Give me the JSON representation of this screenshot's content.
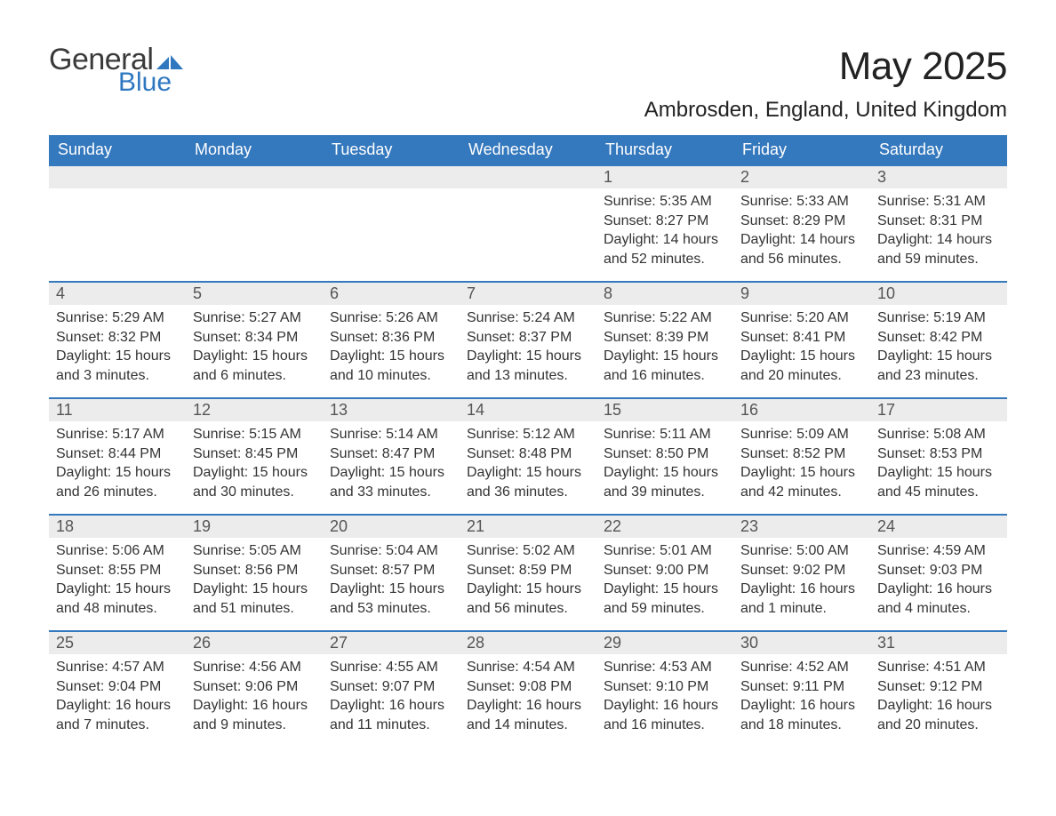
{
  "logo": {
    "general": "General",
    "blue": "Blue",
    "tri_color": "#2f78c0"
  },
  "title": "May 2025",
  "location": "Ambrosden, England, United Kingdom",
  "colors": {
    "header_bg": "#3478bd",
    "header_text": "#ffffff",
    "row_divider": "#3478bd",
    "daynum_bg": "#ececec",
    "body_text": "#333333",
    "daynum_text": "#555555",
    "page_bg": "#ffffff"
  },
  "fonts": {
    "title_pt": 44,
    "location_pt": 24,
    "dow_pt": 18,
    "daynum_pt": 18,
    "body_pt": 16
  },
  "days_of_week": [
    "Sunday",
    "Monday",
    "Tuesday",
    "Wednesday",
    "Thursday",
    "Friday",
    "Saturday"
  ],
  "weeks": [
    [
      {
        "n": "",
        "lines": []
      },
      {
        "n": "",
        "lines": []
      },
      {
        "n": "",
        "lines": []
      },
      {
        "n": "",
        "lines": []
      },
      {
        "n": "1",
        "lines": [
          "Sunrise: 5:35 AM",
          "Sunset: 8:27 PM",
          "Daylight: 14 hours and 52 minutes."
        ]
      },
      {
        "n": "2",
        "lines": [
          "Sunrise: 5:33 AM",
          "Sunset: 8:29 PM",
          "Daylight: 14 hours and 56 minutes."
        ]
      },
      {
        "n": "3",
        "lines": [
          "Sunrise: 5:31 AM",
          "Sunset: 8:31 PM",
          "Daylight: 14 hours and 59 minutes."
        ]
      }
    ],
    [
      {
        "n": "4",
        "lines": [
          "Sunrise: 5:29 AM",
          "Sunset: 8:32 PM",
          "Daylight: 15 hours and 3 minutes."
        ]
      },
      {
        "n": "5",
        "lines": [
          "Sunrise: 5:27 AM",
          "Sunset: 8:34 PM",
          "Daylight: 15 hours and 6 minutes."
        ]
      },
      {
        "n": "6",
        "lines": [
          "Sunrise: 5:26 AM",
          "Sunset: 8:36 PM",
          "Daylight: 15 hours and 10 minutes."
        ]
      },
      {
        "n": "7",
        "lines": [
          "Sunrise: 5:24 AM",
          "Sunset: 8:37 PM",
          "Daylight: 15 hours and 13 minutes."
        ]
      },
      {
        "n": "8",
        "lines": [
          "Sunrise: 5:22 AM",
          "Sunset: 8:39 PM",
          "Daylight: 15 hours and 16 minutes."
        ]
      },
      {
        "n": "9",
        "lines": [
          "Sunrise: 5:20 AM",
          "Sunset: 8:41 PM",
          "Daylight: 15 hours and 20 minutes."
        ]
      },
      {
        "n": "10",
        "lines": [
          "Sunrise: 5:19 AM",
          "Sunset: 8:42 PM",
          "Daylight: 15 hours and 23 minutes."
        ]
      }
    ],
    [
      {
        "n": "11",
        "lines": [
          "Sunrise: 5:17 AM",
          "Sunset: 8:44 PM",
          "Daylight: 15 hours and 26 minutes."
        ]
      },
      {
        "n": "12",
        "lines": [
          "Sunrise: 5:15 AM",
          "Sunset: 8:45 PM",
          "Daylight: 15 hours and 30 minutes."
        ]
      },
      {
        "n": "13",
        "lines": [
          "Sunrise: 5:14 AM",
          "Sunset: 8:47 PM",
          "Daylight: 15 hours and 33 minutes."
        ]
      },
      {
        "n": "14",
        "lines": [
          "Sunrise: 5:12 AM",
          "Sunset: 8:48 PM",
          "Daylight: 15 hours and 36 minutes."
        ]
      },
      {
        "n": "15",
        "lines": [
          "Sunrise: 5:11 AM",
          "Sunset: 8:50 PM",
          "Daylight: 15 hours and 39 minutes."
        ]
      },
      {
        "n": "16",
        "lines": [
          "Sunrise: 5:09 AM",
          "Sunset: 8:52 PM",
          "Daylight: 15 hours and 42 minutes."
        ]
      },
      {
        "n": "17",
        "lines": [
          "Sunrise: 5:08 AM",
          "Sunset: 8:53 PM",
          "Daylight: 15 hours and 45 minutes."
        ]
      }
    ],
    [
      {
        "n": "18",
        "lines": [
          "Sunrise: 5:06 AM",
          "Sunset: 8:55 PM",
          "Daylight: 15 hours and 48 minutes."
        ]
      },
      {
        "n": "19",
        "lines": [
          "Sunrise: 5:05 AM",
          "Sunset: 8:56 PM",
          "Daylight: 15 hours and 51 minutes."
        ]
      },
      {
        "n": "20",
        "lines": [
          "Sunrise: 5:04 AM",
          "Sunset: 8:57 PM",
          "Daylight: 15 hours and 53 minutes."
        ]
      },
      {
        "n": "21",
        "lines": [
          "Sunrise: 5:02 AM",
          "Sunset: 8:59 PM",
          "Daylight: 15 hours and 56 minutes."
        ]
      },
      {
        "n": "22",
        "lines": [
          "Sunrise: 5:01 AM",
          "Sunset: 9:00 PM",
          "Daylight: 15 hours and 59 minutes."
        ]
      },
      {
        "n": "23",
        "lines": [
          "Sunrise: 5:00 AM",
          "Sunset: 9:02 PM",
          "Daylight: 16 hours and 1 minute."
        ]
      },
      {
        "n": "24",
        "lines": [
          "Sunrise: 4:59 AM",
          "Sunset: 9:03 PM",
          "Daylight: 16 hours and 4 minutes."
        ]
      }
    ],
    [
      {
        "n": "25",
        "lines": [
          "Sunrise: 4:57 AM",
          "Sunset: 9:04 PM",
          "Daylight: 16 hours and 7 minutes."
        ]
      },
      {
        "n": "26",
        "lines": [
          "Sunrise: 4:56 AM",
          "Sunset: 9:06 PM",
          "Daylight: 16 hours and 9 minutes."
        ]
      },
      {
        "n": "27",
        "lines": [
          "Sunrise: 4:55 AM",
          "Sunset: 9:07 PM",
          "Daylight: 16 hours and 11 minutes."
        ]
      },
      {
        "n": "28",
        "lines": [
          "Sunrise: 4:54 AM",
          "Sunset: 9:08 PM",
          "Daylight: 16 hours and 14 minutes."
        ]
      },
      {
        "n": "29",
        "lines": [
          "Sunrise: 4:53 AM",
          "Sunset: 9:10 PM",
          "Daylight: 16 hours and 16 minutes."
        ]
      },
      {
        "n": "30",
        "lines": [
          "Sunrise: 4:52 AM",
          "Sunset: 9:11 PM",
          "Daylight: 16 hours and 18 minutes."
        ]
      },
      {
        "n": "31",
        "lines": [
          "Sunrise: 4:51 AM",
          "Sunset: 9:12 PM",
          "Daylight: 16 hours and 20 minutes."
        ]
      }
    ]
  ]
}
